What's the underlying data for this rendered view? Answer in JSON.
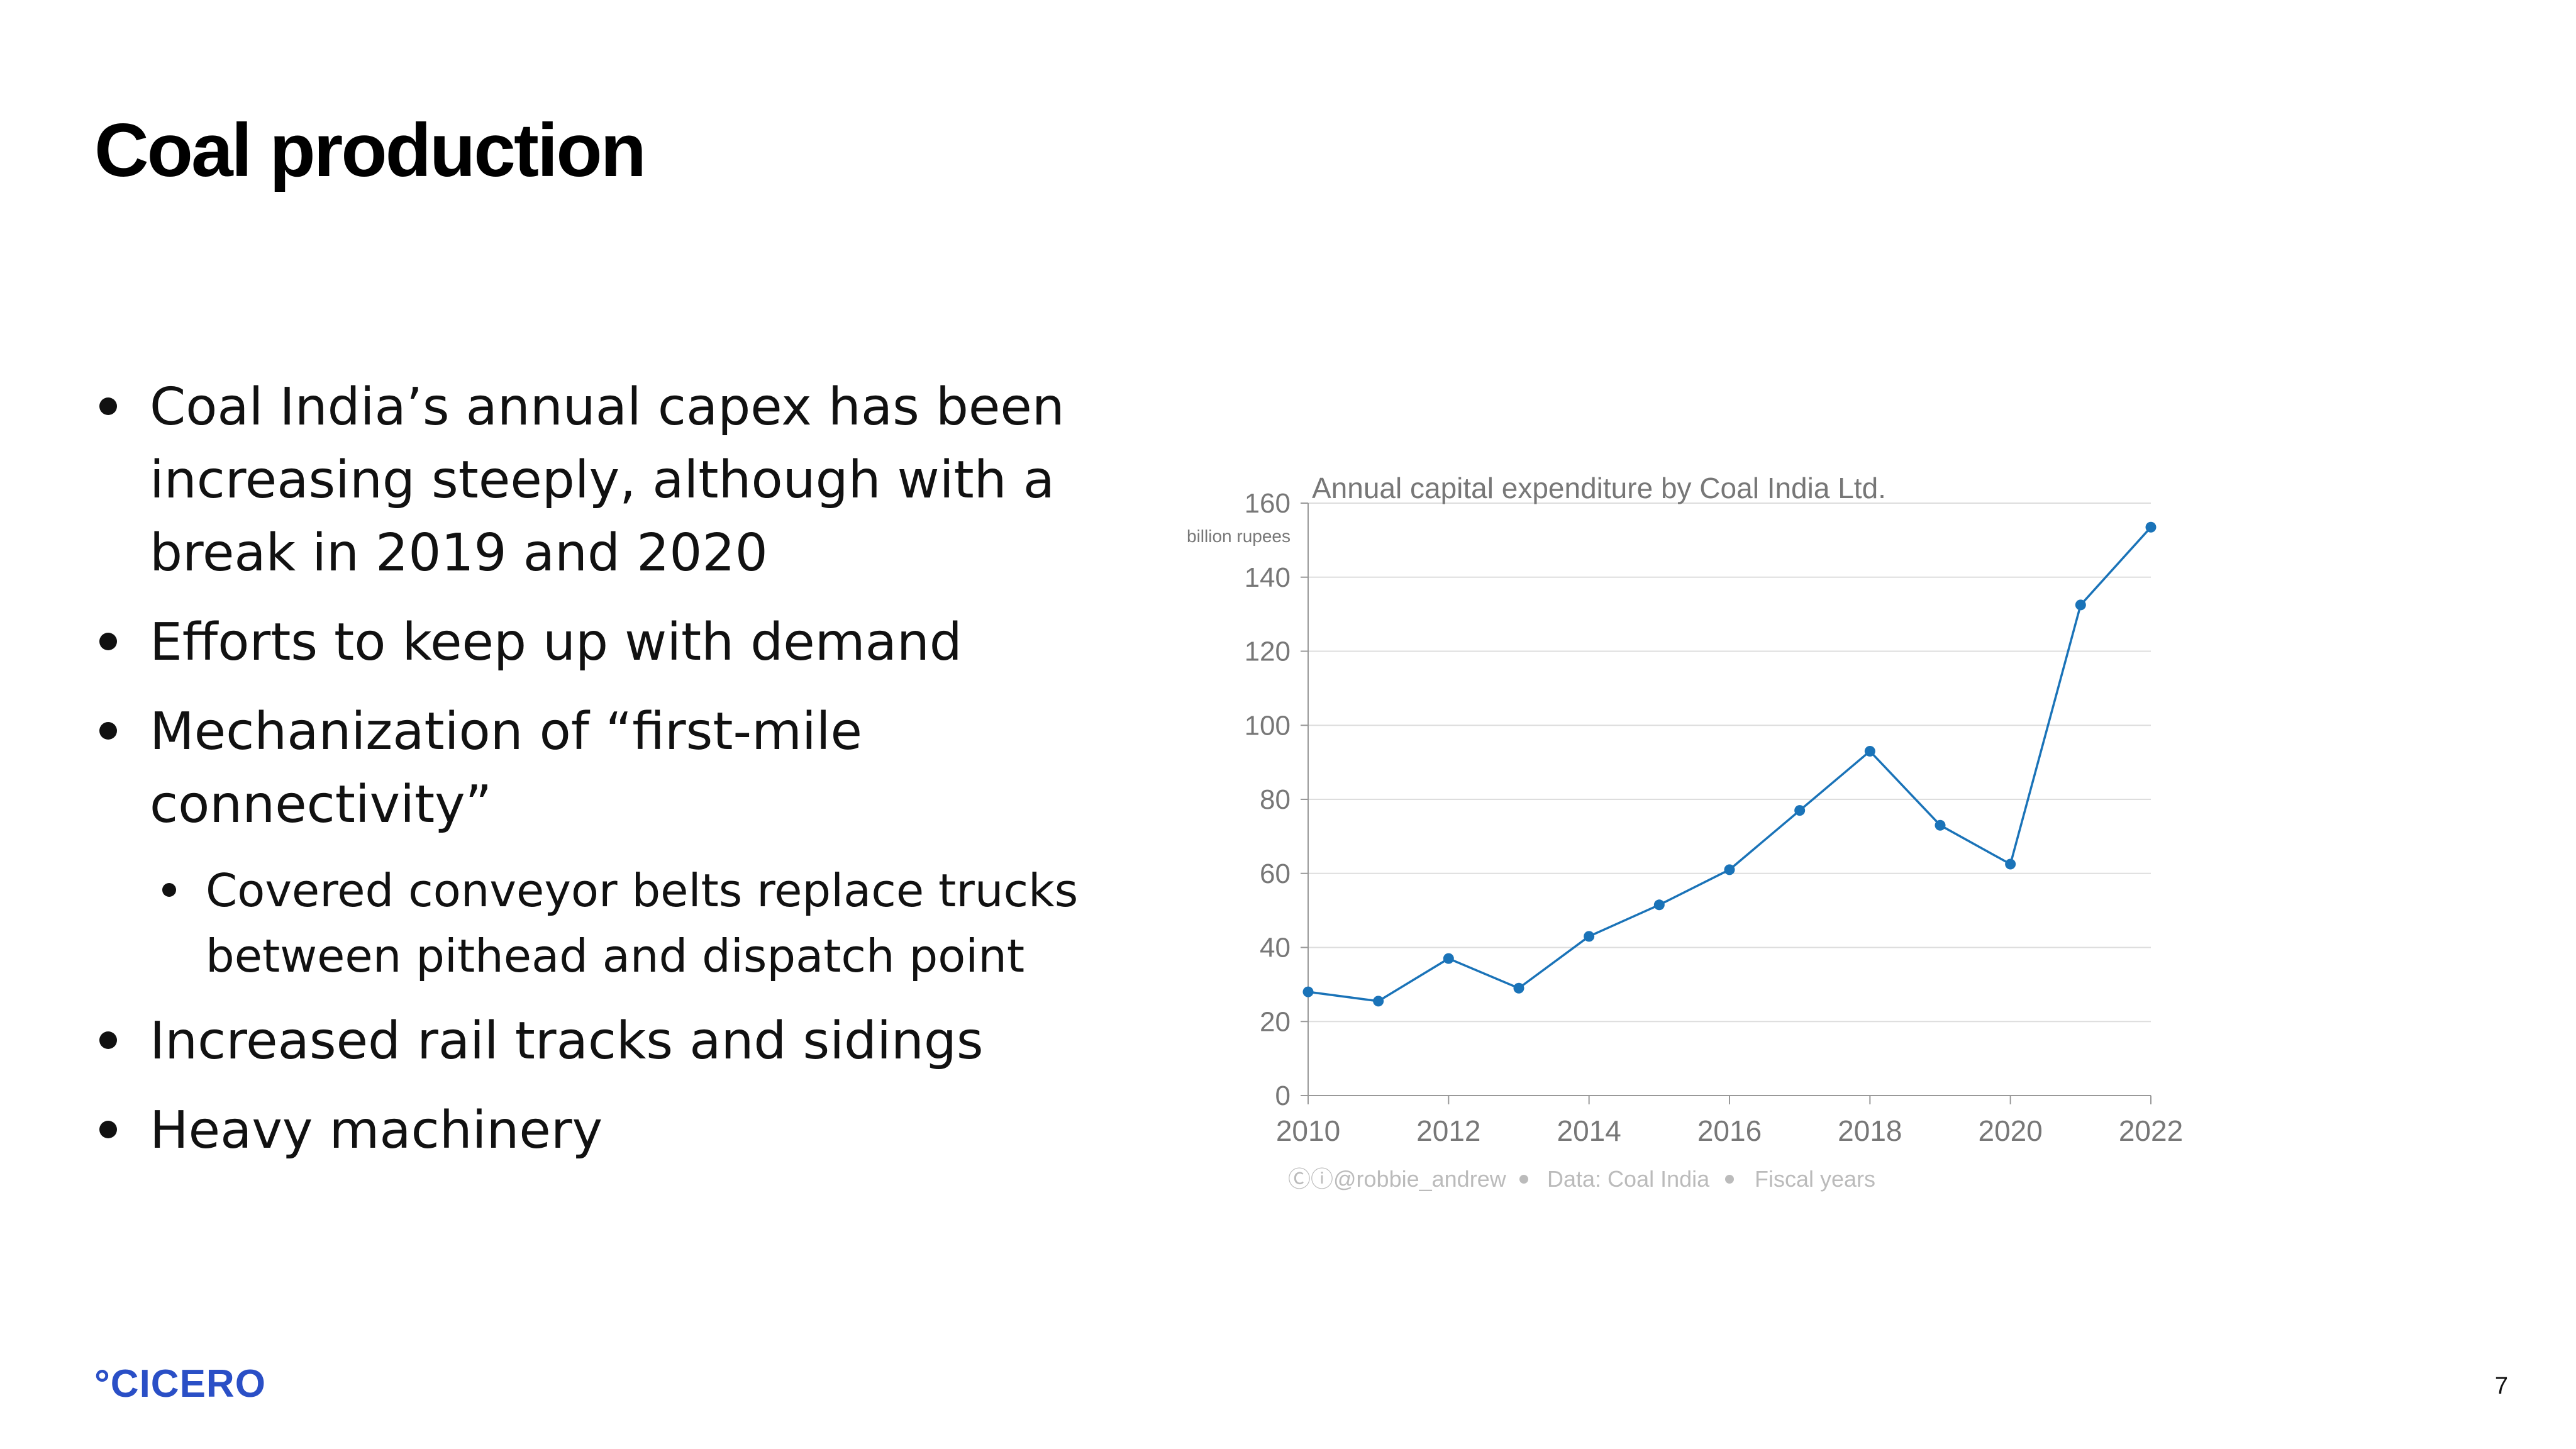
{
  "slide": {
    "title": "Coal production",
    "page_number": "7",
    "logo": "°CICERO",
    "bullets": [
      {
        "level": 1,
        "text": "Coal India’s annual capex has been increasing steeply, although with a break in 2019 and 2020"
      },
      {
        "level": 1,
        "text": "Efforts to keep up with demand"
      },
      {
        "level": 1,
        "text": "Mechanization of “first-mile connectivity”"
      },
      {
        "level": 2,
        "text": "Covered conveyor belts replace trucks between pithead and dispatch point"
      },
      {
        "level": 1,
        "text": "Increased rail tracks and sidings"
      },
      {
        "level": 1,
        "text": "Heavy machinery"
      }
    ]
  },
  "chart_data": {
    "type": "line",
    "title": "Annual capital expenditure by Coal India Ltd.",
    "ylabel": "billion rupees",
    "xlabel": "",
    "xlim": [
      2010,
      2022
    ],
    "ylim": [
      0,
      160
    ],
    "x_ticks": [
      2010,
      2012,
      2014,
      2016,
      2018,
      2020,
      2022
    ],
    "y_ticks": [
      0,
      20,
      40,
      60,
      80,
      100,
      120,
      140,
      160
    ],
    "grid": "horizontal",
    "series": [
      {
        "color": "#1a73b8",
        "x": [
          2010,
          2011,
          2012,
          2013,
          2014,
          2015,
          2016,
          2017,
          2018,
          2019,
          2020,
          2021,
          2022
        ],
        "y": [
          28,
          25.5,
          37,
          29,
          43,
          51.5,
          61,
          77,
          93,
          73,
          62.5,
          132.5,
          153.5
        ]
      }
    ],
    "footer": [
      "@robbie_andrew",
      "Data: Coal India",
      "Fiscal years"
    ]
  }
}
